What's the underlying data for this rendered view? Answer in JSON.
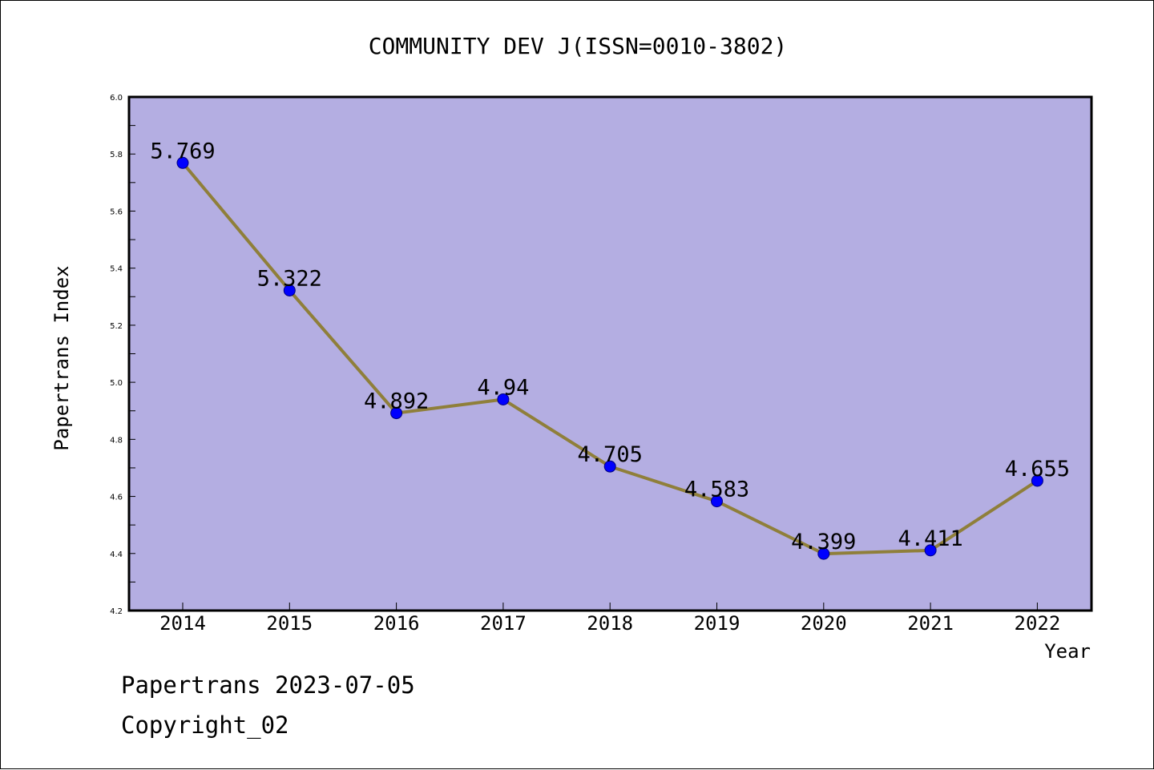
{
  "chart": {
    "title": "COMMUNITY DEV J(ISSN=0010-3802)",
    "footer": {
      "line1": "Papertrans 2023-07-05",
      "line2": "Copyright_02"
    }
  },
  "colors": {
    "plot_background": "#b4aee2",
    "line": "#8f7f3a",
    "marker_fill": "#0000ff",
    "marker_stroke": "#000080",
    "axis": "#000000"
  },
  "chart_data": {
    "type": "line",
    "title": "COMMUNITY DEV J(ISSN=0010-3802)",
    "xlabel": "Year",
    "ylabel": "Papertrans Index",
    "categories": [
      "2014",
      "2015",
      "2016",
      "2017",
      "2018",
      "2019",
      "2020",
      "2021",
      "2022"
    ],
    "values": [
      5.769,
      5.322,
      4.892,
      4.94,
      4.705,
      4.583,
      4.399,
      4.411,
      4.655
    ],
    "value_labels": [
      "5.769",
      "5.322",
      "4.892",
      "4.94",
      "4.705",
      "4.583",
      "4.399",
      "4.411",
      "4.655"
    ],
    "ylim": [
      4.2,
      6.0
    ],
    "yticks": [
      4.2,
      4.4,
      4.6,
      4.8,
      5.0,
      5.2,
      5.4,
      5.6,
      5.8,
      6.0
    ],
    "ytick_labels": [
      "4.2",
      "4.4",
      "4.6",
      "4.8",
      "5.0",
      "5.2",
      "5.4",
      "5.6",
      "5.8",
      "6.0"
    ],
    "grid": false,
    "legend": "none"
  }
}
